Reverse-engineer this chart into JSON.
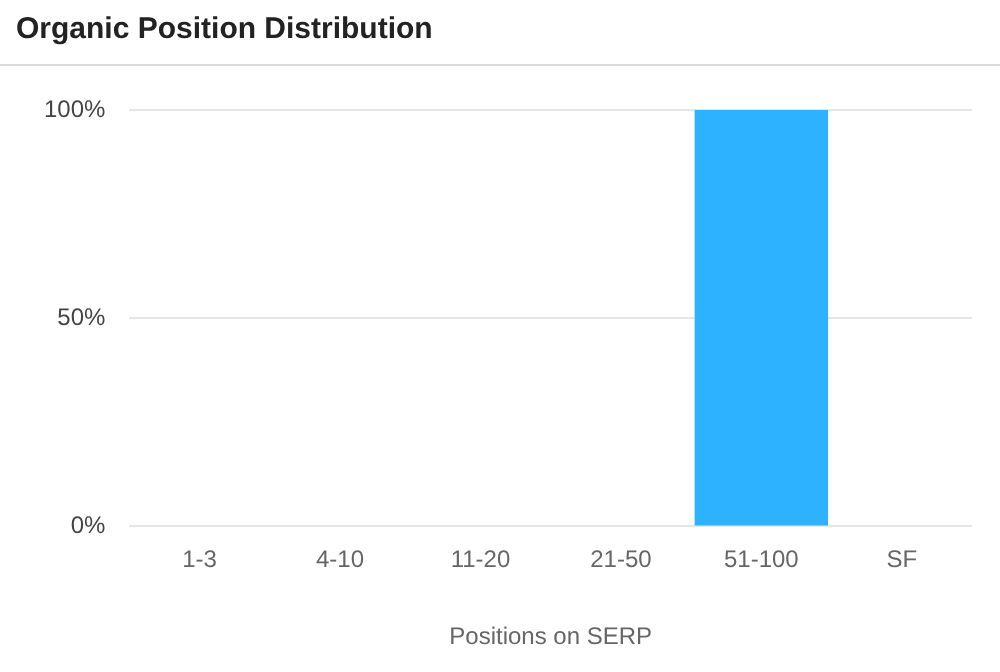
{
  "chart_data": {
    "type": "bar",
    "title": "Organic Position Distribution",
    "xlabel": "Positions on SERP",
    "categories": [
      "1-3",
      "4-10",
      "11-20",
      "21-50",
      "51-100",
      "SF"
    ],
    "values": [
      0,
      0,
      0,
      0,
      100,
      0
    ],
    "color": "#2db2ff",
    "ylim": [
      0,
      100
    ],
    "yticks": [
      {
        "value": 0,
        "label": "0%"
      },
      {
        "value": 50,
        "label": "50%"
      },
      {
        "value": 100,
        "label": "100%"
      }
    ],
    "grid": "y",
    "legend": false
  }
}
